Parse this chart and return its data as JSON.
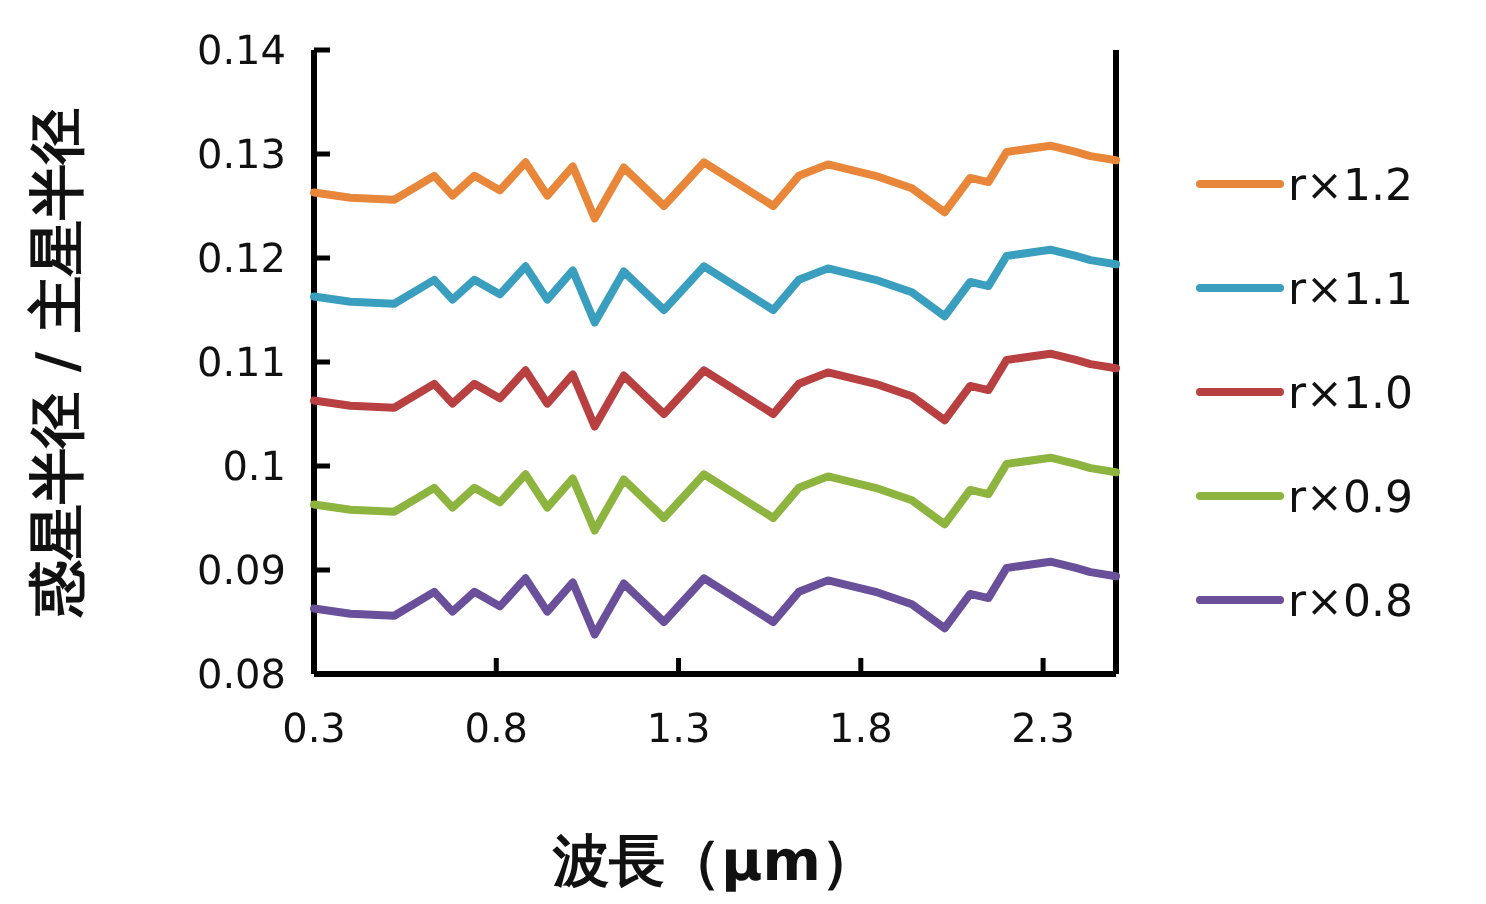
{
  "chart_data": {
    "type": "line",
    "xlabel": "波長（μm）",
    "ylabel": "惑星半径 / 主星半径",
    "xlim": [
      0.3,
      2.5
    ],
    "xticks": [
      0.3,
      0.8,
      1.3,
      1.8,
      2.3
    ],
    "ylim": [
      0.08,
      0.14
    ],
    "yticks": [
      0.08,
      0.09,
      0.1,
      0.11,
      0.12,
      0.13,
      0.14
    ],
    "grid": false,
    "legend": "right",
    "marker": "none",
    "line_style": "solid",
    "x": [
      0.3,
      0.4,
      0.52,
      0.63,
      0.68,
      0.74,
      0.81,
      0.88,
      0.94,
      1.01,
      1.07,
      1.15,
      1.26,
      1.37,
      1.56,
      1.63,
      1.71,
      1.84,
      1.94,
      2.03,
      2.1,
      2.15,
      2.2,
      2.32,
      2.39,
      2.43,
      2.5
    ],
    "series": [
      {
        "name": "r×1.2",
        "color": "#e8873a",
        "values": [
          0.1263,
          0.1258,
          0.1256,
          0.1279,
          0.126,
          0.1279,
          0.1265,
          0.1292,
          0.126,
          0.1288,
          0.1238,
          0.1287,
          0.125,
          0.1292,
          0.125,
          0.1279,
          0.129,
          0.1279,
          0.1267,
          0.1244,
          0.1277,
          0.1273,
          0.1302,
          0.1308,
          0.1302,
          0.1298,
          0.1294
        ]
      },
      {
        "name": "r×1.1",
        "color": "#3a9fbf",
        "values": [
          0.1163,
          0.1158,
          0.1156,
          0.1179,
          0.116,
          0.1179,
          0.1165,
          0.1192,
          0.116,
          0.1188,
          0.1138,
          0.1187,
          0.115,
          0.1192,
          0.115,
          0.1179,
          0.119,
          0.1179,
          0.1167,
          0.1144,
          0.1177,
          0.1173,
          0.1202,
          0.1208,
          0.1202,
          0.1198,
          0.1194
        ]
      },
      {
        "name": "r×1.0",
        "color": "#b84040",
        "values": [
          0.1063,
          0.1058,
          0.1056,
          0.1079,
          0.106,
          0.1079,
          0.1065,
          0.1092,
          0.106,
          0.1088,
          0.1038,
          0.1087,
          0.105,
          0.1092,
          0.105,
          0.1079,
          0.109,
          0.1079,
          0.1067,
          0.1044,
          0.1077,
          0.1073,
          0.1102,
          0.1108,
          0.1102,
          0.1098,
          0.1094
        ]
      },
      {
        "name": "r×0.9",
        "color": "#8db43e",
        "values": [
          0.0963,
          0.0958,
          0.0956,
          0.0979,
          0.096,
          0.0979,
          0.0965,
          0.0992,
          0.096,
          0.0988,
          0.0938,
          0.0987,
          0.095,
          0.0992,
          0.095,
          0.0979,
          0.099,
          0.0979,
          0.0967,
          0.0944,
          0.0977,
          0.0973,
          0.1002,
          0.1008,
          0.1002,
          0.0998,
          0.0994
        ]
      },
      {
        "name": "r×0.8",
        "color": "#6a4f9a",
        "values": [
          0.0863,
          0.0858,
          0.0856,
          0.0879,
          0.086,
          0.0879,
          0.0865,
          0.0892,
          0.086,
          0.0888,
          0.0838,
          0.0887,
          0.085,
          0.0892,
          0.085,
          0.0879,
          0.089,
          0.0879,
          0.0867,
          0.0844,
          0.0877,
          0.0873,
          0.0902,
          0.0908,
          0.0902,
          0.0898,
          0.0894
        ]
      }
    ]
  }
}
